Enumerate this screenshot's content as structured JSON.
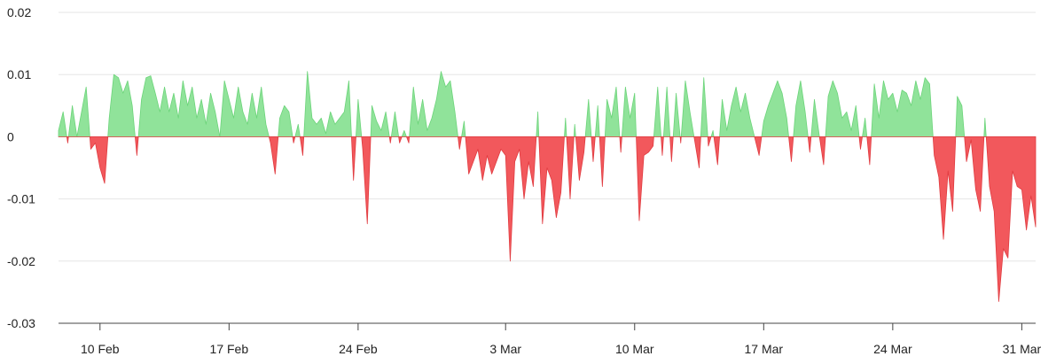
{
  "chart_data": {
    "type": "area",
    "title": "",
    "xlabel": "",
    "ylabel": "",
    "ylim": [
      -0.03,
      0.02
    ],
    "grid": true,
    "legend": "none",
    "x_range": [
      "2024-02-07T18:00",
      "2024-03-31T18:00"
    ],
    "y_ticks": [
      {
        "value": 0.02,
        "label": "0.02"
      },
      {
        "value": 0.01,
        "label": "0.01"
      },
      {
        "value": 0,
        "label": "0"
      },
      {
        "value": -0.01,
        "label": "-0.01"
      },
      {
        "value": -0.02,
        "label": "-0.02"
      },
      {
        "value": -0.03,
        "label": "-0.03"
      }
    ],
    "x_ticks": [
      {
        "date": "2024-02-10",
        "label": "10 Feb"
      },
      {
        "date": "2024-02-17",
        "label": "17 Feb"
      },
      {
        "date": "2024-02-24",
        "label": "24 Feb"
      },
      {
        "date": "2024-03-03",
        "label": "3 Mar"
      },
      {
        "date": "2024-03-10",
        "label": "10 Mar"
      },
      {
        "date": "2024-03-17",
        "label": "17 Mar"
      },
      {
        "date": "2024-03-24",
        "label": "24 Mar"
      },
      {
        "date": "2024-03-31",
        "label": "31 Mar"
      }
    ],
    "colors": {
      "positive_fill": "#90e39a",
      "positive_line": "#6cd47a",
      "negative_fill": "#f2585c",
      "negative_line": "#e03b40"
    },
    "series": [
      {
        "points": [
          [
            "2024-02-07T18:00",
            0.001
          ],
          [
            "2024-02-08T00:00",
            0.004
          ],
          [
            "2024-02-08T06:00",
            -0.001
          ],
          [
            "2024-02-08T12:00",
            0.005
          ],
          [
            "2024-02-08T18:00",
            0.0
          ],
          [
            "2024-02-09T00:00",
            0.004
          ],
          [
            "2024-02-09T06:00",
            0.008
          ],
          [
            "2024-02-09T12:00",
            -0.002
          ],
          [
            "2024-02-09T18:00",
            -0.001
          ],
          [
            "2024-02-10T00:00",
            -0.005
          ],
          [
            "2024-02-10T06:00",
            -0.0075
          ],
          [
            "2024-02-10T12:00",
            0.003
          ],
          [
            "2024-02-10T18:00",
            0.01
          ],
          [
            "2024-02-11T00:00",
            0.0095
          ],
          [
            "2024-02-11T06:00",
            0.007
          ],
          [
            "2024-02-11T12:00",
            0.009
          ],
          [
            "2024-02-11T18:00",
            0.005
          ],
          [
            "2024-02-12T00:00",
            -0.003
          ],
          [
            "2024-02-12T06:00",
            0.006
          ],
          [
            "2024-02-12T12:00",
            0.0095
          ],
          [
            "2024-02-12T18:00",
            0.0098
          ],
          [
            "2024-02-13T00:00",
            0.007
          ],
          [
            "2024-02-13T06:00",
            0.004
          ],
          [
            "2024-02-13T12:00",
            0.008
          ],
          [
            "2024-02-13T18:00",
            0.004
          ],
          [
            "2024-02-14T00:00",
            0.007
          ],
          [
            "2024-02-14T06:00",
            0.003
          ],
          [
            "2024-02-14T12:00",
            0.009
          ],
          [
            "2024-02-14T18:00",
            0.005
          ],
          [
            "2024-02-15T00:00",
            0.008
          ],
          [
            "2024-02-15T06:00",
            0.003
          ],
          [
            "2024-02-15T12:00",
            0.006
          ],
          [
            "2024-02-15T18:00",
            0.002
          ],
          [
            "2024-02-16T00:00",
            0.007
          ],
          [
            "2024-02-16T06:00",
            0.004
          ],
          [
            "2024-02-16T12:00",
            0.0
          ],
          [
            "2024-02-16T18:00",
            0.009
          ],
          [
            "2024-02-17T00:00",
            0.006
          ],
          [
            "2024-02-17T06:00",
            0.003
          ],
          [
            "2024-02-17T12:00",
            0.008
          ],
          [
            "2024-02-17T18:00",
            0.004
          ],
          [
            "2024-02-18T00:00",
            0.002
          ],
          [
            "2024-02-18T06:00",
            0.007
          ],
          [
            "2024-02-18T12:00",
            0.003
          ],
          [
            "2024-02-18T18:00",
            0.008
          ],
          [
            "2024-02-19T00:00",
            0.002
          ],
          [
            "2024-02-19T06:00",
            -0.001
          ],
          [
            "2024-02-19T12:00",
            -0.006
          ],
          [
            "2024-02-19T18:00",
            0.003
          ],
          [
            "2024-02-20T00:00",
            0.005
          ],
          [
            "2024-02-20T06:00",
            0.004
          ],
          [
            "2024-02-20T12:00",
            -0.001
          ],
          [
            "2024-02-20T18:00",
            0.002
          ],
          [
            "2024-02-21T00:00",
            -0.003
          ],
          [
            "2024-02-21T06:00",
            0.0105
          ],
          [
            "2024-02-21T12:00",
            0.003
          ],
          [
            "2024-02-21T18:00",
            0.002
          ],
          [
            "2024-02-22T00:00",
            0.003
          ],
          [
            "2024-02-22T06:00",
            0.0005
          ],
          [
            "2024-02-22T12:00",
            0.004
          ],
          [
            "2024-02-22T18:00",
            0.002
          ],
          [
            "2024-02-23T00:00",
            0.003
          ],
          [
            "2024-02-23T06:00",
            0.004
          ],
          [
            "2024-02-23T12:00",
            0.009
          ],
          [
            "2024-02-23T18:00",
            -0.007
          ],
          [
            "2024-02-24T00:00",
            0.006
          ],
          [
            "2024-02-24T06:00",
            -0.002
          ],
          [
            "2024-02-24T12:00",
            -0.014
          ],
          [
            "2024-02-24T18:00",
            0.005
          ],
          [
            "2024-02-25T00:00",
            0.0025
          ],
          [
            "2024-02-25T06:00",
            0.001
          ],
          [
            "2024-02-25T12:00",
            0.004
          ],
          [
            "2024-02-25T18:00",
            -0.001
          ],
          [
            "2024-02-26T00:00",
            0.004
          ],
          [
            "2024-02-26T06:00",
            -0.001
          ],
          [
            "2024-02-26T12:00",
            0.001
          ],
          [
            "2024-02-26T18:00",
            -0.001
          ],
          [
            "2024-02-27T00:00",
            0.008
          ],
          [
            "2024-02-27T06:00",
            0.002
          ],
          [
            "2024-02-27T12:00",
            0.006
          ],
          [
            "2024-02-27T18:00",
            0.001
          ],
          [
            "2024-02-28T00:00",
            0.003
          ],
          [
            "2024-02-28T06:00",
            0.006
          ],
          [
            "2024-02-28T12:00",
            0.0105
          ],
          [
            "2024-02-28T18:00",
            0.008
          ],
          [
            "2024-02-29T00:00",
            0.009
          ],
          [
            "2024-02-29T06:00",
            0.004
          ],
          [
            "2024-02-29T12:00",
            -0.002
          ],
          [
            "2024-02-29T18:00",
            0.0025
          ],
          [
            "2024-03-01T00:00",
            -0.006
          ],
          [
            "2024-03-01T06:00",
            -0.004
          ],
          [
            "2024-03-01T12:00",
            -0.002
          ],
          [
            "2024-03-01T18:00",
            -0.007
          ],
          [
            "2024-03-02T00:00",
            -0.003
          ],
          [
            "2024-03-02T06:00",
            -0.006
          ],
          [
            "2024-03-02T12:00",
            -0.004
          ],
          [
            "2024-03-02T18:00",
            -0.002
          ],
          [
            "2024-03-03T00:00",
            -0.003
          ],
          [
            "2024-03-03T06:00",
            -0.02
          ],
          [
            "2024-03-03T12:00",
            -0.004
          ],
          [
            "2024-03-03T18:00",
            -0.002
          ],
          [
            "2024-03-04T00:00",
            -0.01
          ],
          [
            "2024-03-04T06:00",
            -0.004
          ],
          [
            "2024-03-04T12:00",
            -0.008
          ],
          [
            "2024-03-04T18:00",
            0.004
          ],
          [
            "2024-03-05T00:00",
            -0.014
          ],
          [
            "2024-03-05T06:00",
            -0.005
          ],
          [
            "2024-03-05T12:00",
            -0.007
          ],
          [
            "2024-03-05T18:00",
            -0.013
          ],
          [
            "2024-03-06T00:00",
            -0.009
          ],
          [
            "2024-03-06T06:00",
            0.003
          ],
          [
            "2024-03-06T12:00",
            -0.01
          ],
          [
            "2024-03-06T18:00",
            0.002
          ],
          [
            "2024-03-07T00:00",
            -0.007
          ],
          [
            "2024-03-07T06:00",
            -0.0025
          ],
          [
            "2024-03-07T12:00",
            0.006
          ],
          [
            "2024-03-07T18:00",
            -0.004
          ],
          [
            "2024-03-08T00:00",
            0.005
          ],
          [
            "2024-03-08T06:00",
            -0.008
          ],
          [
            "2024-03-08T12:00",
            0.006
          ],
          [
            "2024-03-08T18:00",
            0.003
          ],
          [
            "2024-03-09T00:00",
            0.008
          ],
          [
            "2024-03-09T06:00",
            -0.0025
          ],
          [
            "2024-03-09T12:00",
            0.008
          ],
          [
            "2024-03-09T18:00",
            0.003
          ],
          [
            "2024-03-10T00:00",
            0.007
          ],
          [
            "2024-03-10T06:00",
            -0.0135
          ],
          [
            "2024-03-10T12:00",
            -0.003
          ],
          [
            "2024-03-10T18:00",
            -0.0025
          ],
          [
            "2024-03-11T00:00",
            -0.0015
          ],
          [
            "2024-03-11T06:00",
            0.008
          ],
          [
            "2024-03-11T12:00",
            -0.003
          ],
          [
            "2024-03-11T18:00",
            0.008
          ],
          [
            "2024-03-12T00:00",
            -0.004
          ],
          [
            "2024-03-12T06:00",
            0.007
          ],
          [
            "2024-03-12T12:00",
            -0.001
          ],
          [
            "2024-03-12T18:00",
            0.009
          ],
          [
            "2024-03-13T00:00",
            0.004
          ],
          [
            "2024-03-13T06:00",
            -0.0005
          ],
          [
            "2024-03-13T12:00",
            -0.005
          ],
          [
            "2024-03-13T18:00",
            0.0095
          ],
          [
            "2024-03-14T00:00",
            -0.0015
          ],
          [
            "2024-03-14T06:00",
            0.001
          ],
          [
            "2024-03-14T12:00",
            -0.0045
          ],
          [
            "2024-03-14T18:00",
            0.006
          ],
          [
            "2024-03-15T00:00",
            0.001
          ],
          [
            "2024-03-15T06:00",
            0.005
          ],
          [
            "2024-03-15T12:00",
            0.008
          ],
          [
            "2024-03-15T18:00",
            0.004
          ],
          [
            "2024-03-16T00:00",
            0.007
          ],
          [
            "2024-03-16T06:00",
            0.003
          ],
          [
            "2024-03-16T12:00",
            0.0
          ],
          [
            "2024-03-16T18:00",
            -0.003
          ],
          [
            "2024-03-17T00:00",
            0.0025
          ],
          [
            "2024-03-17T06:00",
            0.005
          ],
          [
            "2024-03-17T12:00",
            0.007
          ],
          [
            "2024-03-17T18:00",
            0.009
          ],
          [
            "2024-03-18T00:00",
            0.007
          ],
          [
            "2024-03-18T06:00",
            0.003
          ],
          [
            "2024-03-18T12:00",
            -0.004
          ],
          [
            "2024-03-18T18:00",
            0.005
          ],
          [
            "2024-03-19T00:00",
            0.009
          ],
          [
            "2024-03-19T06:00",
            0.004
          ],
          [
            "2024-03-19T12:00",
            -0.0025
          ],
          [
            "2024-03-19T18:00",
            0.006
          ],
          [
            "2024-03-20T00:00",
            0.0005
          ],
          [
            "2024-03-20T06:00",
            -0.0045
          ],
          [
            "2024-03-20T12:00",
            0.0065
          ],
          [
            "2024-03-20T18:00",
            0.009
          ],
          [
            "2024-03-21T00:00",
            0.007
          ],
          [
            "2024-03-21T06:00",
            0.003
          ],
          [
            "2024-03-21T12:00",
            0.004
          ],
          [
            "2024-03-21T18:00",
            0.001
          ],
          [
            "2024-03-22T00:00",
            0.005
          ],
          [
            "2024-03-22T06:00",
            -0.002
          ],
          [
            "2024-03-22T12:00",
            0.003
          ],
          [
            "2024-03-22T18:00",
            -0.0045
          ],
          [
            "2024-03-23T00:00",
            0.0085
          ],
          [
            "2024-03-23T06:00",
            0.003
          ],
          [
            "2024-03-23T12:00",
            0.009
          ],
          [
            "2024-03-23T18:00",
            0.006
          ],
          [
            "2024-03-24T00:00",
            0.007
          ],
          [
            "2024-03-24T06:00",
            0.004
          ],
          [
            "2024-03-24T12:00",
            0.0075
          ],
          [
            "2024-03-24T18:00",
            0.007
          ],
          [
            "2024-03-25T00:00",
            0.005
          ],
          [
            "2024-03-25T06:00",
            0.009
          ],
          [
            "2024-03-25T12:00",
            0.006
          ],
          [
            "2024-03-25T18:00",
            0.0095
          ],
          [
            "2024-03-26T00:00",
            0.0085
          ],
          [
            "2024-03-26T06:00",
            -0.003
          ],
          [
            "2024-03-26T12:00",
            -0.0065
          ],
          [
            "2024-03-26T18:00",
            -0.0165
          ],
          [
            "2024-03-27T00:00",
            -0.0055
          ],
          [
            "2024-03-27T06:00",
            -0.012
          ],
          [
            "2024-03-27T12:00",
            0.0065
          ],
          [
            "2024-03-27T18:00",
            0.005
          ],
          [
            "2024-03-28T00:00",
            -0.004
          ],
          [
            "2024-03-28T06:00",
            -0.0005
          ],
          [
            "2024-03-28T12:00",
            -0.0085
          ],
          [
            "2024-03-28T18:00",
            -0.012
          ],
          [
            "2024-03-29T00:00",
            0.003
          ],
          [
            "2024-03-29T06:00",
            -0.008
          ],
          [
            "2024-03-29T12:00",
            -0.012
          ],
          [
            "2024-03-29T18:00",
            -0.0265
          ],
          [
            "2024-03-30T00:00",
            -0.018
          ],
          [
            "2024-03-30T06:00",
            -0.0195
          ],
          [
            "2024-03-30T12:00",
            -0.0055
          ],
          [
            "2024-03-30T18:00",
            -0.008
          ],
          [
            "2024-03-31T00:00",
            -0.0085
          ],
          [
            "2024-03-31T06:00",
            -0.015
          ],
          [
            "2024-03-31T12:00",
            -0.0095
          ],
          [
            "2024-03-31T18:00",
            -0.0145
          ]
        ]
      }
    ]
  }
}
